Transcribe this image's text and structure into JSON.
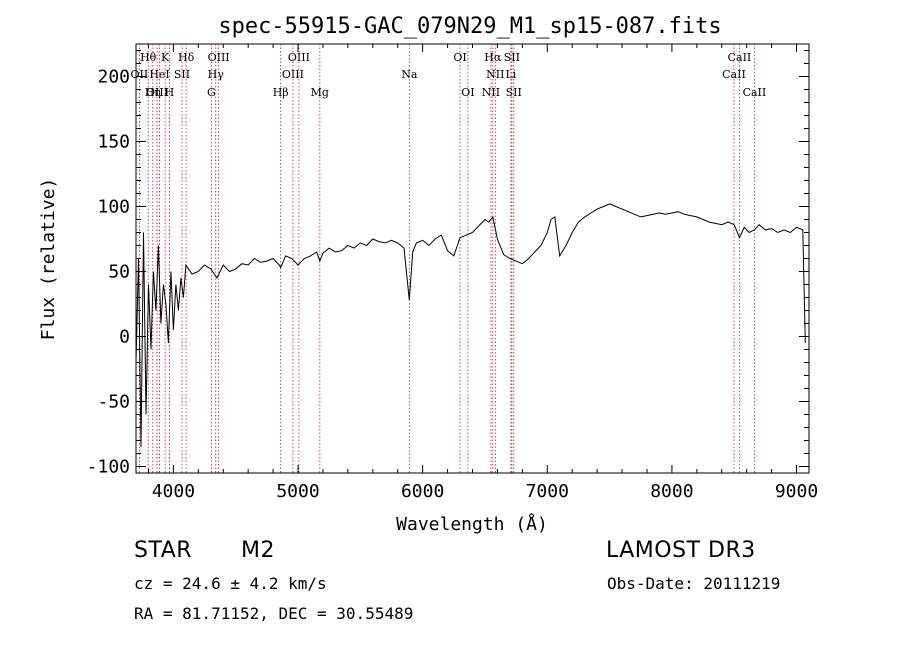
{
  "chart_data": {
    "type": "line",
    "title": "spec-55915-GAC_079N29_M1_sp15-087.fits",
    "xlabel": "Wavelength (Å)",
    "ylabel": "Flux (relative)",
    "xlim": [
      3700,
      9100
    ],
    "ylim": [
      -105,
      225
    ],
    "xticks": [
      4000,
      5000,
      6000,
      7000,
      8000,
      9000
    ],
    "xtick_labels": [
      "4000",
      "5000",
      "6000",
      "7000",
      "8000",
      "9000"
    ],
    "yticks": [
      -100,
      -50,
      0,
      50,
      100,
      150,
      200
    ],
    "ytick_labels": [
      "-100",
      "-50",
      "0",
      "50",
      "100",
      "150",
      "200"
    ],
    "grid": false,
    "series": [
      {
        "name": "spectrum",
        "x": [
          3700,
          3720,
          3740,
          3760,
          3780,
          3800,
          3820,
          3840,
          3860,
          3880,
          3900,
          3920,
          3940,
          3960,
          3980,
          4000,
          4020,
          4040,
          4060,
          4080,
          4100,
          4150,
          4200,
          4250,
          4300,
          4350,
          4400,
          4450,
          4500,
          4550,
          4600,
          4650,
          4700,
          4750,
          4800,
          4850,
          4861,
          4900,
          4950,
          5000,
          5050,
          5100,
          5150,
          5175,
          5200,
          5250,
          5300,
          5350,
          5400,
          5450,
          5500,
          5550,
          5600,
          5650,
          5700,
          5750,
          5800,
          5850,
          5893,
          5920,
          5950,
          6000,
          6050,
          6100,
          6150,
          6200,
          6250,
          6300,
          6350,
          6400,
          6450,
          6500,
          6530,
          6563,
          6600,
          6650,
          6700,
          6750,
          6800,
          6850,
          6900,
          6950,
          7000,
          7030,
          7060,
          7100,
          7150,
          7200,
          7250,
          7300,
          7350,
          7400,
          7450,
          7500,
          7550,
          7600,
          7650,
          7700,
          7750,
          7800,
          7850,
          7900,
          7950,
          8000,
          8050,
          8100,
          8150,
          8200,
          8250,
          8300,
          8350,
          8400,
          8450,
          8500,
          8542,
          8580,
          8620,
          8662,
          8700,
          8750,
          8800,
          8850,
          8900,
          8950,
          9000,
          9050,
          9070
        ],
        "y": [
          -20,
          60,
          -85,
          80,
          -60,
          40,
          -10,
          50,
          20,
          70,
          10,
          40,
          25,
          -5,
          50,
          5,
          40,
          20,
          45,
          30,
          55,
          48,
          50,
          55,
          52,
          45,
          55,
          50,
          52,
          56,
          55,
          60,
          57,
          58,
          60,
          55,
          53,
          62,
          60,
          55,
          60,
          62,
          65,
          58,
          64,
          68,
          65,
          66,
          70,
          68,
          72,
          70,
          75,
          73,
          72,
          74,
          72,
          68,
          28,
          65,
          72,
          74,
          70,
          75,
          78,
          66,
          62,
          76,
          78,
          80,
          85,
          90,
          88,
          92,
          75,
          63,
          60,
          58,
          56,
          60,
          65,
          70,
          80,
          90,
          92,
          62,
          70,
          80,
          88,
          92,
          95,
          98,
          100,
          102,
          100,
          98,
          96,
          94,
          92,
          93,
          94,
          95,
          94,
          95,
          96,
          94,
          93,
          92,
          90,
          88,
          87,
          86,
          88,
          86,
          76,
          84,
          80,
          82,
          86,
          82,
          83,
          80,
          82,
          80,
          84,
          82,
          -5
        ]
      }
    ],
    "line_markers": [
      {
        "label": "Hθ",
        "wavelength": 3798,
        "row": 1
      },
      {
        "label": "OII",
        "wavelength": 3727,
        "row": 2
      },
      {
        "label": "OIII",
        "wavelength": 3869,
        "row": 3
      },
      {
        "label": "K",
        "wavelength": 3934,
        "row": 1
      },
      {
        "label": "HeI",
        "wavelength": 3889,
        "row": 2
      },
      {
        "label": "Hη",
        "wavelength": 3835,
        "row": 3
      },
      {
        "label": "Hδ",
        "wavelength": 4102,
        "row": 1
      },
      {
        "label": "SII",
        "wavelength": 4069,
        "row": 2
      },
      {
        "label": "H",
        "wavelength": 3968,
        "row": 3
      },
      {
        "label": "OIII",
        "wavelength": 4363,
        "row": 1
      },
      {
        "label": "Hγ",
        "wavelength": 4340,
        "row": 2
      },
      {
        "label": "G",
        "wavelength": 4305,
        "row": 3
      },
      {
        "label": "Hβ",
        "wavelength": 4861,
        "row": 3
      },
      {
        "label": "OIII",
        "wavelength": 5007,
        "row": 1
      },
      {
        "label": "OIII",
        "wavelength": 4959,
        "row": 2
      },
      {
        "label": "Mg",
        "wavelength": 5175,
        "row": 3
      },
      {
        "label": "Na",
        "wavelength": 5893,
        "row": 2
      },
      {
        "label": "OI",
        "wavelength": 6300,
        "row": 1
      },
      {
        "label": "OI",
        "wavelength": 6363,
        "row": 3
      },
      {
        "label": "Hα",
        "wavelength": 6563,
        "row": 1
      },
      {
        "label": "SII",
        "wavelength": 6716,
        "row": 1
      },
      {
        "label": "NII",
        "wavelength": 6583,
        "row": 2
      },
      {
        "label": "Li",
        "wavelength": 6708,
        "row": 2
      },
      {
        "label": "NII",
        "wavelength": 6548,
        "row": 3
      },
      {
        "label": "SII",
        "wavelength": 6731,
        "row": 3
      },
      {
        "label": "CaII",
        "wavelength": 8542,
        "row": 1
      },
      {
        "label": "CaII",
        "wavelength": 8498,
        "row": 2
      },
      {
        "label": "CaII",
        "wavelength": 8662,
        "row": 3
      }
    ]
  },
  "info": {
    "object_class": "STAR",
    "subclass": "M2",
    "survey": "LAMOST DR3",
    "redshift": "cz = 24.6 ± 4.2 km/s",
    "obs_date": "Obs-Date: 20111219",
    "coords": "RA =  81.71152, DEC =  30.55489"
  }
}
